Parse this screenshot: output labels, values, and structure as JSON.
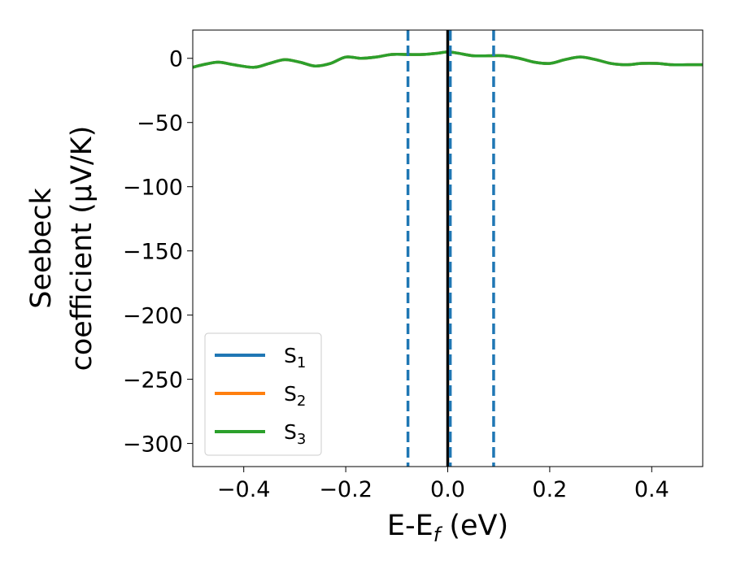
{
  "chart_data": {
    "type": "line",
    "xlabel": {
      "main": "E-E",
      "sub": "f",
      "unit": " (eV)"
    },
    "ylabel": {
      "line1": "Seebeck",
      "line2": "coefficient  (μV/K)"
    },
    "xlim": [
      -0.5,
      0.5
    ],
    "ylim": [
      -318,
      22
    ],
    "x_ticks": [
      -0.4,
      -0.2,
      0.0,
      0.2,
      0.4
    ],
    "x_tick_labels": [
      "−0.4",
      "−0.2",
      "0.0",
      "0.2",
      "0.4"
    ],
    "y_ticks": [
      0,
      -50,
      -100,
      -150,
      -200,
      -250,
      -300
    ],
    "y_tick_labels": [
      "0",
      "−50",
      "−100",
      "−150",
      "−200",
      "−250",
      "−300"
    ],
    "grid": false,
    "legend_position": "lower-left",
    "x": [
      -0.5,
      -0.48,
      -0.45,
      -0.42,
      -0.38,
      -0.35,
      -0.32,
      -0.29,
      -0.26,
      -0.23,
      -0.2,
      -0.17,
      -0.14,
      -0.11,
      -0.08,
      -0.05,
      -0.02,
      0.0,
      0.02,
      0.05,
      0.08,
      0.11,
      0.14,
      0.17,
      0.2,
      0.23,
      0.26,
      0.29,
      0.32,
      0.35,
      0.38,
      0.41,
      0.44,
      0.47,
      0.5
    ],
    "series": [
      {
        "name": "S",
        "sub": "1",
        "color": "#1f77b4",
        "values": [
          -7,
          -5,
          -3,
          -5,
          -7,
          -4,
          -1,
          -3,
          -6,
          -4,
          1,
          0,
          1,
          3,
          3,
          3,
          4,
          5,
          4,
          2,
          2,
          2,
          0,
          -3,
          -4,
          -1,
          1,
          -1,
          -4,
          -5,
          -4,
          -4,
          -5,
          -5,
          -5
        ]
      },
      {
        "name": "S",
        "sub": "2",
        "color": "#ff7f0e",
        "values": [
          -7,
          -5,
          -3,
          -5,
          -7,
          -4,
          -1,
          -3,
          -6,
          -4,
          1,
          0,
          1,
          3,
          3,
          3,
          4,
          5,
          4,
          2,
          2,
          2,
          0,
          -3,
          -4,
          -1,
          1,
          -1,
          -4,
          -5,
          -4,
          -4,
          -5,
          -5,
          -5
        ]
      },
      {
        "name": "S",
        "sub": "3",
        "color": "#2ca02c",
        "values": [
          -7,
          -5,
          -3,
          -5,
          -7,
          -4,
          -1,
          -3,
          -6,
          -4,
          1,
          0,
          1,
          3,
          3,
          3,
          4,
          5,
          4,
          2,
          2,
          2,
          0,
          -3,
          -4,
          -1,
          1,
          -1,
          -4,
          -5,
          -4,
          -4,
          -5,
          -5,
          -5
        ]
      }
    ],
    "vlines": [
      {
        "x": 0.0,
        "color": "#000000",
        "style": "solid"
      },
      {
        "x": -0.078,
        "color": "#1f77b4",
        "style": "dashed"
      },
      {
        "x": 0.005,
        "color": "#1f77b4",
        "style": "dashed"
      },
      {
        "x": 0.09,
        "color": "#1f77b4",
        "style": "dashed"
      }
    ]
  }
}
